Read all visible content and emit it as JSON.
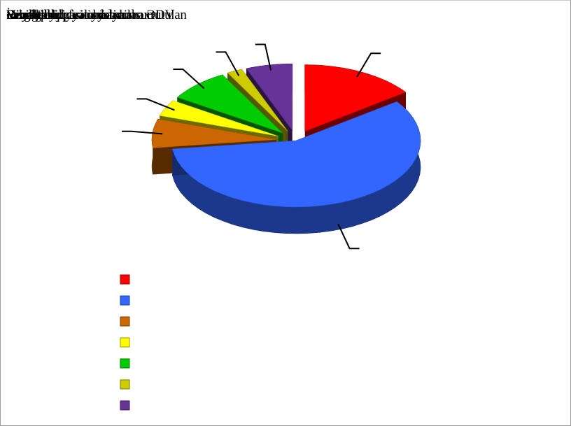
{
  "title_overlay": {
    "lines": [
      "Vergi ödəyicisi olmayan",
      "Sahibkarlıq fəaliyyəti",
      "Əmək haqqı və ona bərabər tutulan",
      "Dividend",
      "Faiz gəliri",
      "İcarə gəliri",
      "Royalti",
      "Dövlət büdcəsinə ödənilən ƏDV",
      "Vergi qeydiyyatında olunsun"
    ]
  },
  "chart_data": {
    "type": "pie",
    "style": "3d-exploded",
    "title": "",
    "legend_position": "bottom-left",
    "labels_visible": false,
    "slices": [
      {
        "color": "#ff0000",
        "value": 15
      },
      {
        "color": "#3366ff",
        "value": 58
      },
      {
        "color": "#cc6600",
        "value": 7
      },
      {
        "color": "#ffff00",
        "value": 4
      },
      {
        "color": "#00cc00",
        "value": 8
      },
      {
        "color": "#cccc00",
        "value": 2
      },
      {
        "color": "#663399",
        "value": 6
      }
    ]
  }
}
